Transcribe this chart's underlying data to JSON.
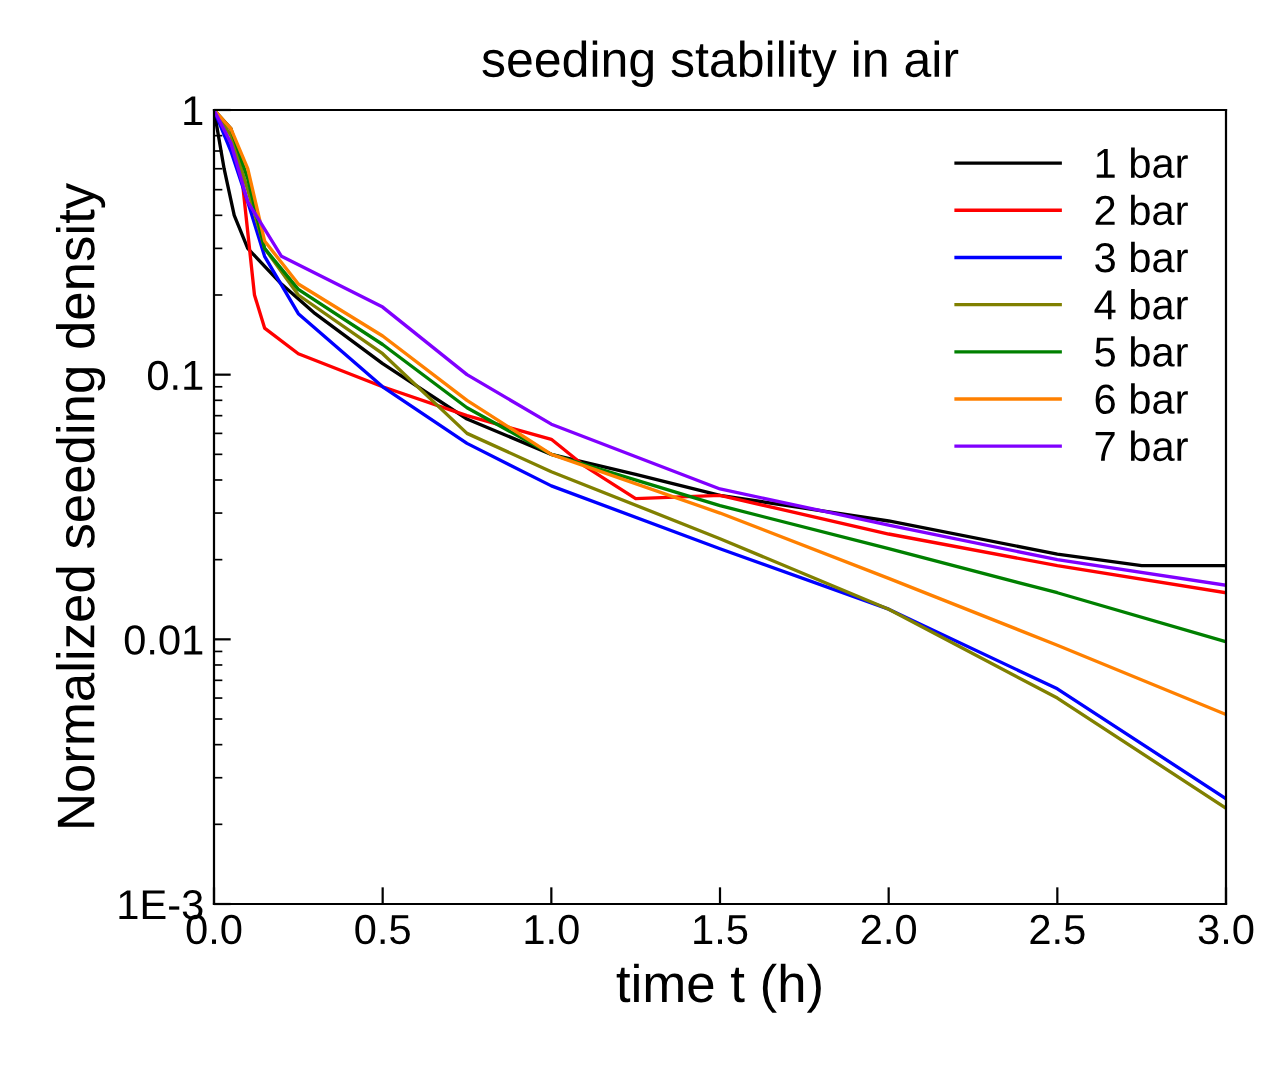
{
  "chart_data": {
    "type": "line",
    "title": "seeding stability in air",
    "xlabel": "time t (h)",
    "ylabel": "Normalized seeding density",
    "log": "y",
    "xlim": [
      0,
      3
    ],
    "xticks": [
      {
        "value": 0,
        "label": "0.0"
      },
      {
        "value": 0.5,
        "label": "0.5"
      },
      {
        "value": 1,
        "label": "1.0"
      },
      {
        "value": 1.5,
        "label": "1.5"
      },
      {
        "value": 2,
        "label": "2.0"
      },
      {
        "value": 2.5,
        "label": "2.5"
      },
      {
        "value": 3,
        "label": "3.0"
      }
    ],
    "ylim": [
      0.001,
      1
    ],
    "yticks": [
      {
        "value": 0.001,
        "label": "1E-3"
      },
      0.01,
      0.1,
      1
    ],
    "legend": "top right",
    "grid": false,
    "line_style": "solid",
    "marker": "none",
    "series": [
      {
        "name": "1 bar",
        "color": "#000000",
        "x": [
          0,
          0.03,
          0.06,
          0.1,
          0.2,
          0.3,
          0.5,
          0.75,
          1.0,
          1.25,
          1.5,
          2.0,
          2.5,
          2.75,
          3.0
        ],
        "values": [
          1,
          0.6,
          0.4,
          0.3,
          0.22,
          0.17,
          0.11,
          0.068,
          0.05,
          0.042,
          0.035,
          0.028,
          0.021,
          0.019,
          0.019
        ]
      },
      {
        "name": "2 bar",
        "color": "#ff0000",
        "x": [
          0,
          0.05,
          0.08,
          0.12,
          0.15,
          0.25,
          0.5,
          0.75,
          1.0,
          1.1,
          1.25,
          1.5,
          2.0,
          2.5,
          3.0
        ],
        "values": [
          1,
          0.85,
          0.6,
          0.2,
          0.15,
          0.12,
          0.09,
          0.07,
          0.057,
          0.045,
          0.034,
          0.035,
          0.025,
          0.019,
          0.015
        ]
      },
      {
        "name": "3 bar",
        "color": "#0000ff",
        "x": [
          0,
          0.05,
          0.1,
          0.15,
          0.25,
          0.5,
          0.75,
          1.0,
          1.5,
          2.0,
          2.5,
          3.0
        ],
        "values": [
          1,
          0.7,
          0.45,
          0.28,
          0.17,
          0.09,
          0.055,
          0.038,
          0.022,
          0.013,
          0.0065,
          0.0025
        ]
      },
      {
        "name": "4 bar",
        "color": "#808000",
        "x": [
          0,
          0.05,
          0.1,
          0.15,
          0.25,
          0.5,
          0.75,
          1.0,
          1.5,
          2.0,
          2.5,
          3.0
        ],
        "values": [
          1,
          0.8,
          0.5,
          0.3,
          0.2,
          0.12,
          0.06,
          0.043,
          0.024,
          0.013,
          0.006,
          0.0023
        ]
      },
      {
        "name": "5 bar",
        "color": "#008000",
        "x": [
          0,
          0.05,
          0.1,
          0.15,
          0.25,
          0.5,
          0.75,
          1.0,
          1.5,
          2.0,
          2.5,
          3.0
        ],
        "values": [
          1,
          0.85,
          0.55,
          0.3,
          0.21,
          0.13,
          0.075,
          0.05,
          0.032,
          0.022,
          0.015,
          0.0098
        ]
      },
      {
        "name": "6 bar",
        "color": "#ff8000",
        "x": [
          0,
          0.05,
          0.1,
          0.15,
          0.25,
          0.5,
          0.75,
          1.0,
          1.5,
          2.0,
          2.5,
          3.0
        ],
        "values": [
          1,
          0.85,
          0.6,
          0.32,
          0.22,
          0.14,
          0.08,
          0.05,
          0.03,
          0.017,
          0.0095,
          0.0052
        ]
      },
      {
        "name": "7 bar",
        "color": "#8000ff",
        "x": [
          0,
          0.05,
          0.1,
          0.2,
          0.5,
          0.75,
          1.0,
          1.5,
          2.0,
          2.5,
          3.0
        ],
        "values": [
          1,
          0.75,
          0.45,
          0.28,
          0.18,
          0.1,
          0.065,
          0.037,
          0.027,
          0.02,
          0.016
        ]
      }
    ]
  }
}
